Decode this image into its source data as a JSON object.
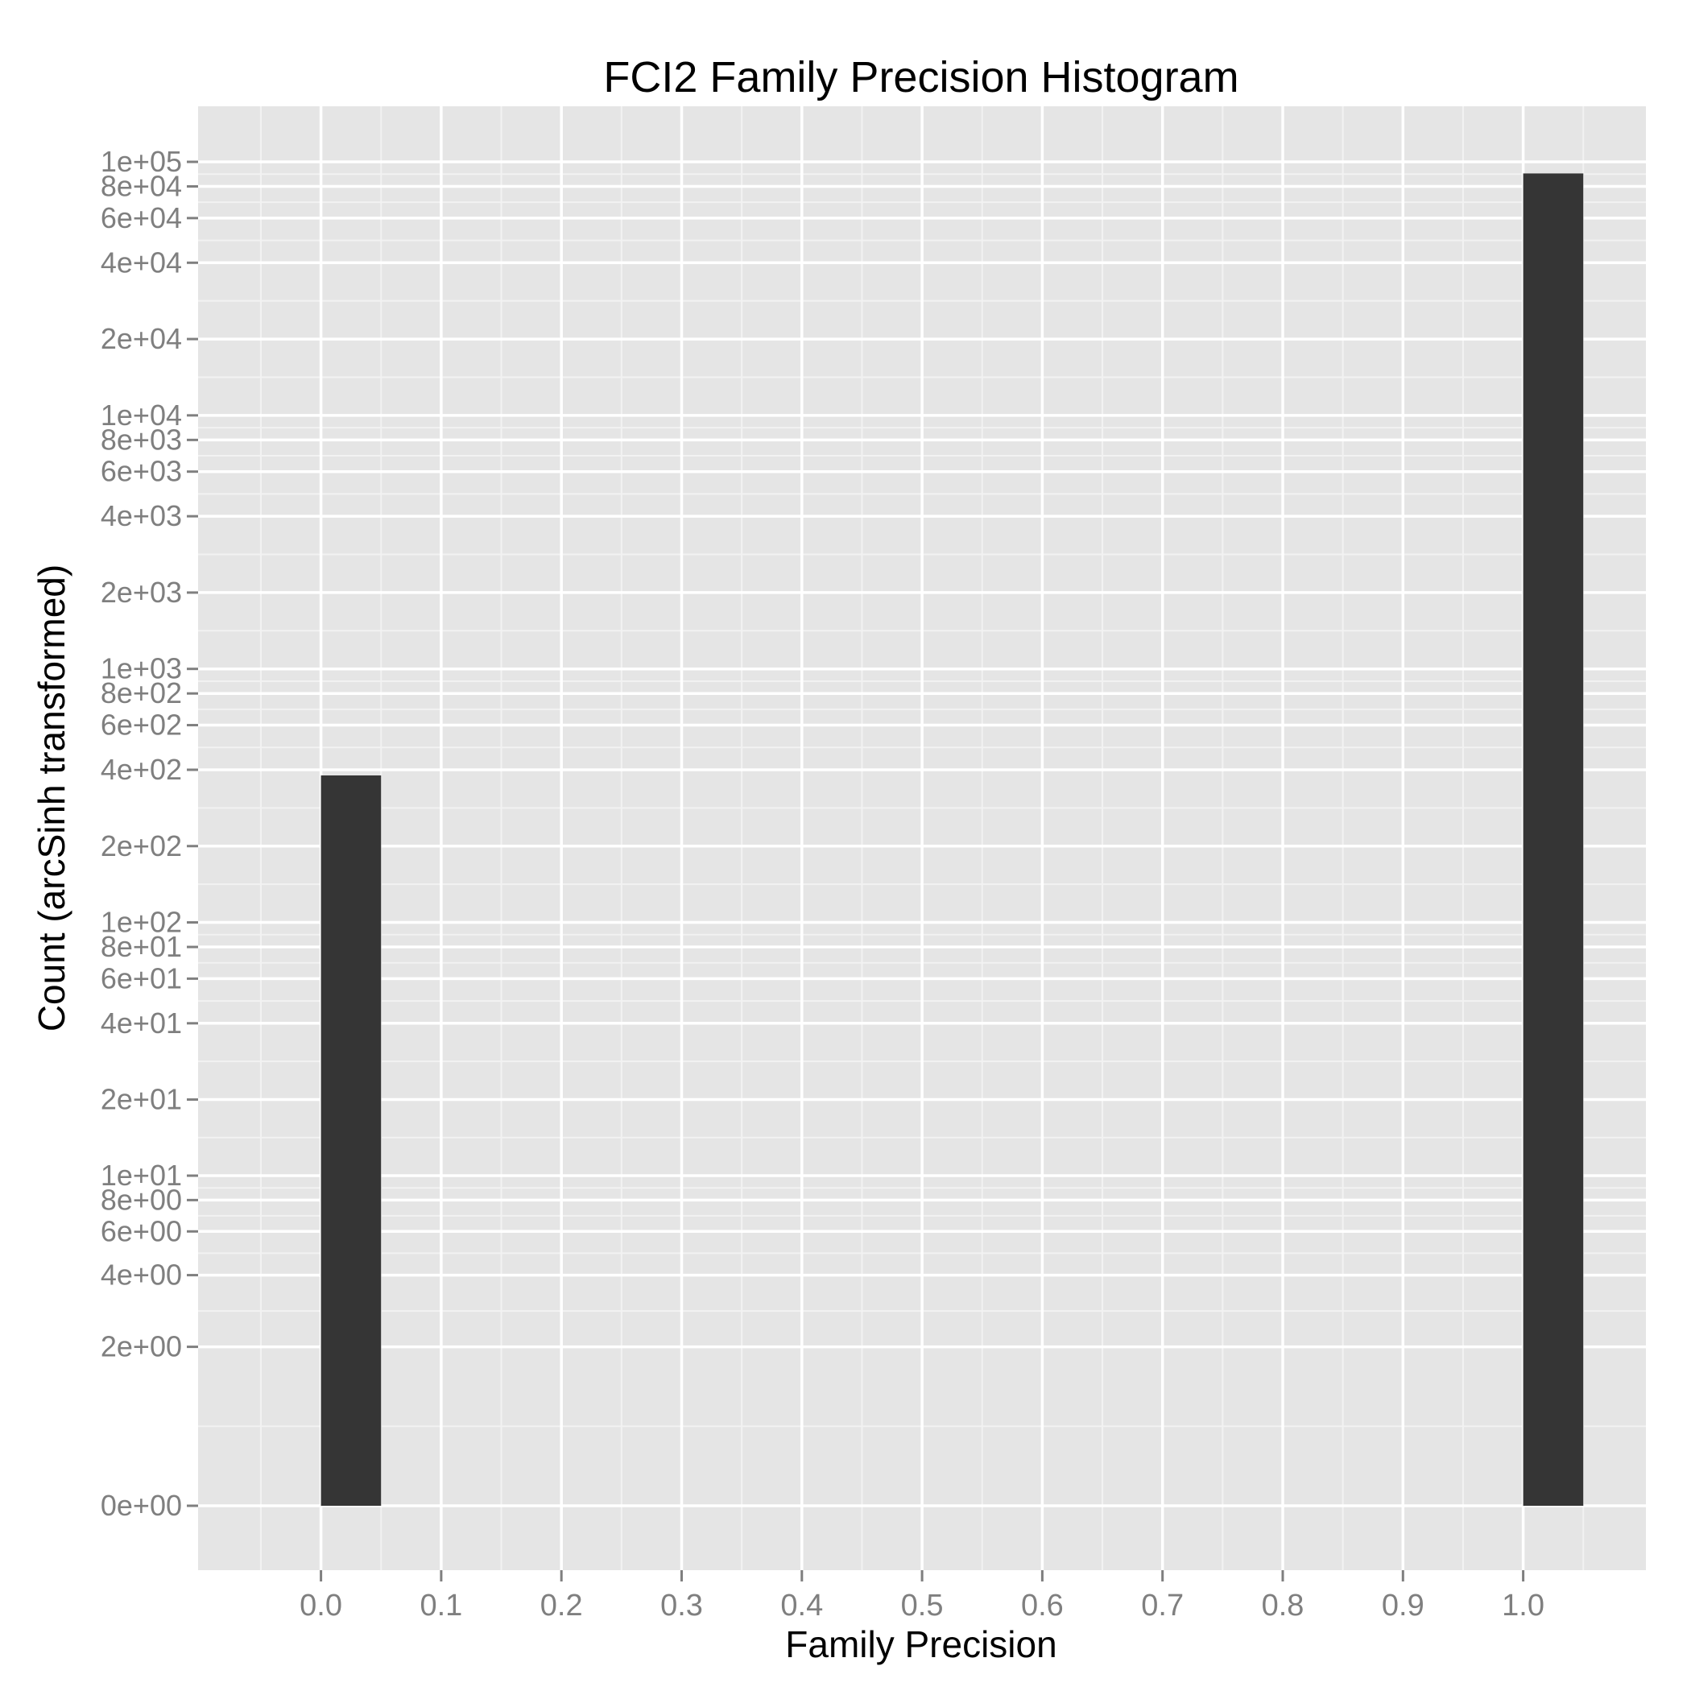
{
  "chart_data": {
    "type": "bar",
    "title": "FCI2 Family Precision Histogram",
    "xlabel": "Family Precision",
    "ylabel": "Count (arcSinh transformed)",
    "y_scale": "arcsinh",
    "xlim": [
      -0.1,
      1.1
    ],
    "xticks": [
      0.0,
      0.1,
      0.2,
      0.3,
      0.4,
      0.5,
      0.6,
      0.7,
      0.8,
      0.9,
      1.0
    ],
    "xtick_labels": [
      "0.0",
      "0.1",
      "0.2",
      "0.3",
      "0.4",
      "0.5",
      "0.6",
      "0.7",
      "0.8",
      "0.9",
      "1.0"
    ],
    "yticks": [
      0,
      2,
      4,
      6,
      8,
      10,
      20,
      40,
      60,
      80,
      100,
      200,
      400,
      600,
      800,
      1000,
      2000,
      4000,
      6000,
      8000,
      10000,
      20000,
      40000,
      60000,
      80000,
      100000
    ],
    "ytick_labels": [
      "0e+00",
      "2e+00",
      "4e+00",
      "6e+00",
      "8e+00",
      "1e+01",
      "2e+01",
      "4e+01",
      "6e+01",
      "8e+01",
      "1e+02",
      "2e+02",
      "4e+02",
      "6e+02",
      "8e+02",
      "1e+03",
      "2e+03",
      "4e+03",
      "6e+03",
      "8e+03",
      "1e+04",
      "2e+04",
      "4e+04",
      "6e+04",
      "8e+04",
      "1e+05"
    ],
    "grid": true,
    "bins": [
      {
        "x_start": 0.0,
        "x_end": 0.05,
        "count": 380
      },
      {
        "x_start": 1.0,
        "x_end": 1.05,
        "count": 90000
      }
    ],
    "colors": {
      "panel": "#e5e5e5",
      "grid_major": "#ffffff",
      "grid_minor": "#f2f2f2",
      "bar": "#353535",
      "tick_label": "#7f7f7f",
      "text": "#000000"
    }
  }
}
